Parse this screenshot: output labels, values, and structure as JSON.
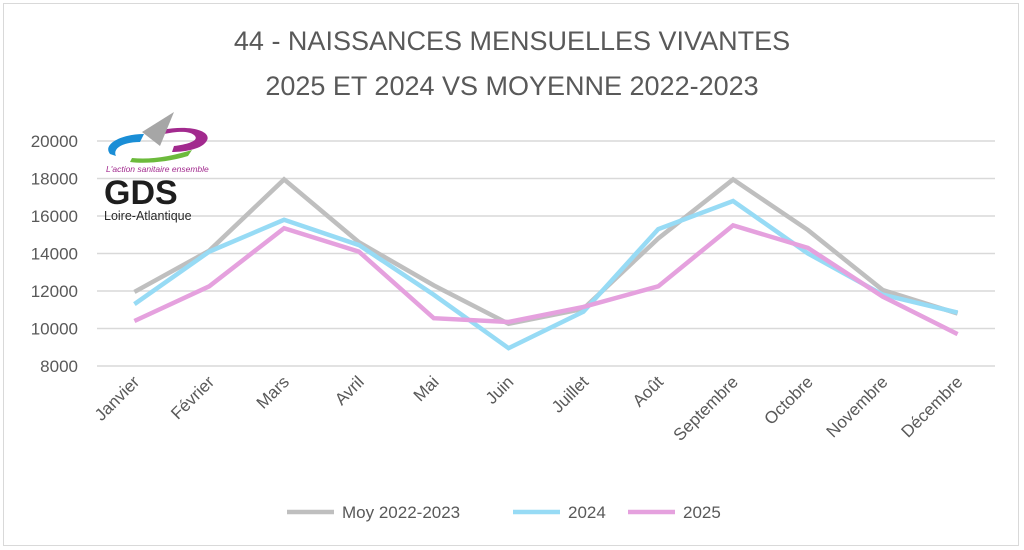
{
  "chart_data": {
    "type": "line",
    "title": [
      "44 - NAISSANCES MENSUELLES VIVANTES",
      "2025 ET 2024 VS MOYENNE 2022-2023"
    ],
    "xlabel": "",
    "ylabel": "",
    "categories": [
      "Janvier",
      "Février",
      "Mars",
      "Avril",
      "Mai",
      "Juin",
      "Juillet",
      "Août",
      "Septembre",
      "Octobre",
      "Novembre",
      "Décembre"
    ],
    "ylim": [
      8000,
      20000
    ],
    "yticks": [
      "8000",
      "10000",
      "12000",
      "14000",
      "16000",
      "18000",
      "20000"
    ],
    "grid": true,
    "legend_position": "bottom",
    "series": [
      {
        "name": "Moy 2022-2023",
        "color": "#bfbfbf",
        "values": [
          11950,
          14150,
          17950,
          14600,
          12300,
          10250,
          11050,
          14800,
          17950,
          15250,
          12050,
          10800
        ]
      },
      {
        "name": "2024",
        "color": "#97dbf5",
        "values": [
          11300,
          14100,
          15800,
          14450,
          11800,
          8950,
          10900,
          15300,
          16800,
          14000,
          11800,
          10850
        ]
      },
      {
        "name": "2025",
        "color": "#e5a1de",
        "values": [
          10400,
          12250,
          15350,
          14100,
          10550,
          10350,
          11150,
          12250,
          15500,
          14300,
          11700,
          9700
        ]
      }
    ]
  },
  "logo": {
    "tagline": "L'action sanitaire ensemble",
    "name": "GDS",
    "region": "Loire-Atlantique"
  }
}
